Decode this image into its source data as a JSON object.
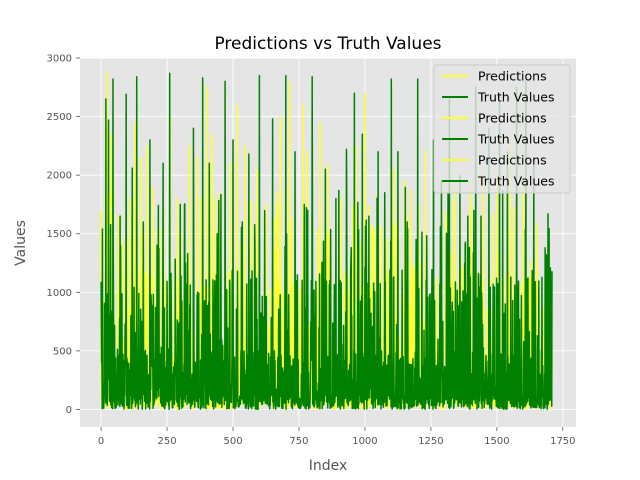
{
  "chart_data": {
    "type": "line",
    "title": "Predictions vs Truth Values",
    "xlabel": "Index",
    "ylabel": "Values",
    "xlim": [
      -80,
      1800
    ],
    "ylim": [
      -150,
      3000
    ],
    "xticks": [
      0,
      250,
      500,
      750,
      1000,
      1250,
      1500,
      1750
    ],
    "yticks": [
      0,
      500,
      1000,
      1500,
      2000,
      2500,
      3000
    ],
    "grid": true,
    "legend_position": "top-right",
    "legend": [
      "Predictions",
      "Truth Values",
      "Predictions",
      "Truth Values",
      "Predictions",
      "Truth Values"
    ],
    "n_points": 1710,
    "series": [
      {
        "name": "Predictions",
        "color": "#ffff33",
        "spikes": [
          [
            0,
            1700
          ],
          [
            22,
            2880
          ],
          [
            38,
            2350
          ],
          [
            65,
            1650
          ],
          [
            110,
            1800
          ],
          [
            128,
            2450
          ],
          [
            150,
            2150
          ],
          [
            175,
            2250
          ],
          [
            200,
            1500
          ],
          [
            262,
            2500
          ],
          [
            290,
            1800
          ],
          [
            335,
            2250
          ],
          [
            365,
            2150
          ],
          [
            400,
            2750
          ],
          [
            420,
            2350
          ],
          [
            450,
            1850
          ],
          [
            490,
            2100
          ],
          [
            515,
            2600
          ],
          [
            545,
            2250
          ],
          [
            590,
            2050
          ],
          [
            625,
            1750
          ],
          [
            680,
            2500
          ],
          [
            715,
            2800
          ],
          [
            765,
            2600
          ],
          [
            780,
            2200
          ],
          [
            830,
            2450
          ],
          [
            860,
            2100
          ],
          [
            910,
            1800
          ],
          [
            965,
            2250
          ],
          [
            1000,
            2700
          ],
          [
            1030,
            1550
          ],
          [
            1060,
            1550
          ],
          [
            1085,
            1450
          ],
          [
            1110,
            2050
          ],
          [
            1150,
            1950
          ],
          [
            1180,
            1250
          ],
          [
            1230,
            2200
          ],
          [
            1310,
            1600
          ],
          [
            1340,
            1900
          ],
          [
            1400,
            1900
          ],
          [
            1450,
            2000
          ],
          [
            1500,
            2000
          ],
          [
            1550,
            2300
          ],
          [
            1600,
            2000
          ],
          [
            1640,
            2050
          ]
        ]
      },
      {
        "name": "Truth Values",
        "color": "#008000",
        "spikes": [
          [
            5,
            1540
          ],
          [
            18,
            2650
          ],
          [
            28,
            2470
          ],
          [
            45,
            2820
          ],
          [
            72,
            1650
          ],
          [
            95,
            2690
          ],
          [
            118,
            2060
          ],
          [
            135,
            2840
          ],
          [
            160,
            1600
          ],
          [
            185,
            2300
          ],
          [
            215,
            1240
          ],
          [
            235,
            2100
          ],
          [
            260,
            2870
          ],
          [
            300,
            1750
          ],
          [
            320,
            1250
          ],
          [
            350,
            2400
          ],
          [
            385,
            2830
          ],
          [
            410,
            2100
          ],
          [
            440,
            1500
          ],
          [
            470,
            2800
          ],
          [
            500,
            2300
          ],
          [
            535,
            1600
          ],
          [
            560,
            2180
          ],
          [
            600,
            2850
          ],
          [
            650,
            2480
          ],
          [
            700,
            2850
          ],
          [
            735,
            2200
          ],
          [
            770,
            1750
          ],
          [
            800,
            2840
          ],
          [
            850,
            2050
          ],
          [
            890,
            1800
          ],
          [
            930,
            2220
          ],
          [
            960,
            2700
          ],
          [
            990,
            2350
          ],
          [
            1015,
            1650
          ],
          [
            1050,
            2200
          ],
          [
            1075,
            1850
          ],
          [
            1100,
            2820
          ],
          [
            1125,
            2200
          ],
          [
            1160,
            1600
          ],
          [
            1200,
            2820
          ],
          [
            1260,
            2300
          ],
          [
            1290,
            1950
          ],
          [
            1320,
            2650
          ],
          [
            1360,
            2000
          ],
          [
            1390,
            1650
          ],
          [
            1420,
            2750
          ],
          [
            1440,
            1650
          ],
          [
            1470,
            2400
          ],
          [
            1510,
            2700
          ],
          [
            1540,
            2200
          ],
          [
            1575,
            2750
          ],
          [
            1610,
            2800
          ],
          [
            1640,
            2100
          ],
          [
            1660,
            100
          ],
          [
            1700,
            150
          ]
        ]
      }
    ]
  }
}
